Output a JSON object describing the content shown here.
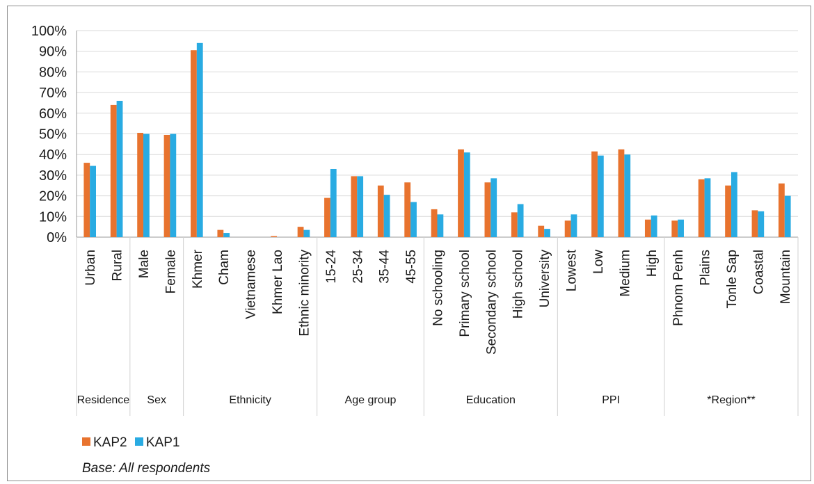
{
  "chart_data": {
    "type": "bar",
    "categories": [
      "Urban",
      "Rural",
      "Male",
      "Female",
      "Khmer",
      "Cham",
      "Vietnamese",
      "Khmer Lao",
      "Ethnic minority",
      "15-24",
      "25-34",
      "35-44",
      "45-55",
      "No schooling",
      "Primary school",
      "Secondary school",
      "High school",
      "University",
      "Lowest",
      "Low",
      "Medium",
      "High",
      "Phnom Penh",
      "Plains",
      "Tonle Sap",
      "Coastal",
      "Mountain"
    ],
    "groups": [
      {
        "label": "Residence",
        "count": 2
      },
      {
        "label": "Sex",
        "count": 2
      },
      {
        "label": "Ethnicity",
        "count": 5
      },
      {
        "label": "Age group",
        "count": 4
      },
      {
        "label": "Education",
        "count": 5
      },
      {
        "label": "PPI",
        "count": 4
      },
      {
        "label": "*Region**",
        "count": 5
      }
    ],
    "series": [
      {
        "name": "KAP2",
        "color": "#e8732e",
        "values": [
          36,
          64,
          50.5,
          49.5,
          90.5,
          3.5,
          0,
          0.5,
          5,
          19,
          29.5,
          25,
          26.5,
          13.5,
          42.5,
          26.5,
          12,
          5.5,
          8,
          41.5,
          42.5,
          8.5,
          8,
          28,
          25,
          13,
          26
        ]
      },
      {
        "name": "KAP1",
        "color": "#29abe2",
        "values": [
          34.5,
          66,
          50,
          50,
          94,
          2,
          0,
          0,
          3.5,
          33,
          29.5,
          20.5,
          17,
          11,
          41,
          28.5,
          16,
          4,
          11,
          39.5,
          40,
          10.5,
          8.5,
          28.5,
          31.5,
          12.5,
          20
        ]
      }
    ],
    "yticks": [
      "0%",
      "10%",
      "20%",
      "30%",
      "40%",
      "50%",
      "60%",
      "70%",
      "80%",
      "90%",
      "100%"
    ],
    "ylim": [
      0,
      100
    ],
    "grid": true,
    "legend": "bottom-left",
    "title": "",
    "xlabel": "",
    "ylabel": ""
  },
  "note": "Base: All respondents"
}
